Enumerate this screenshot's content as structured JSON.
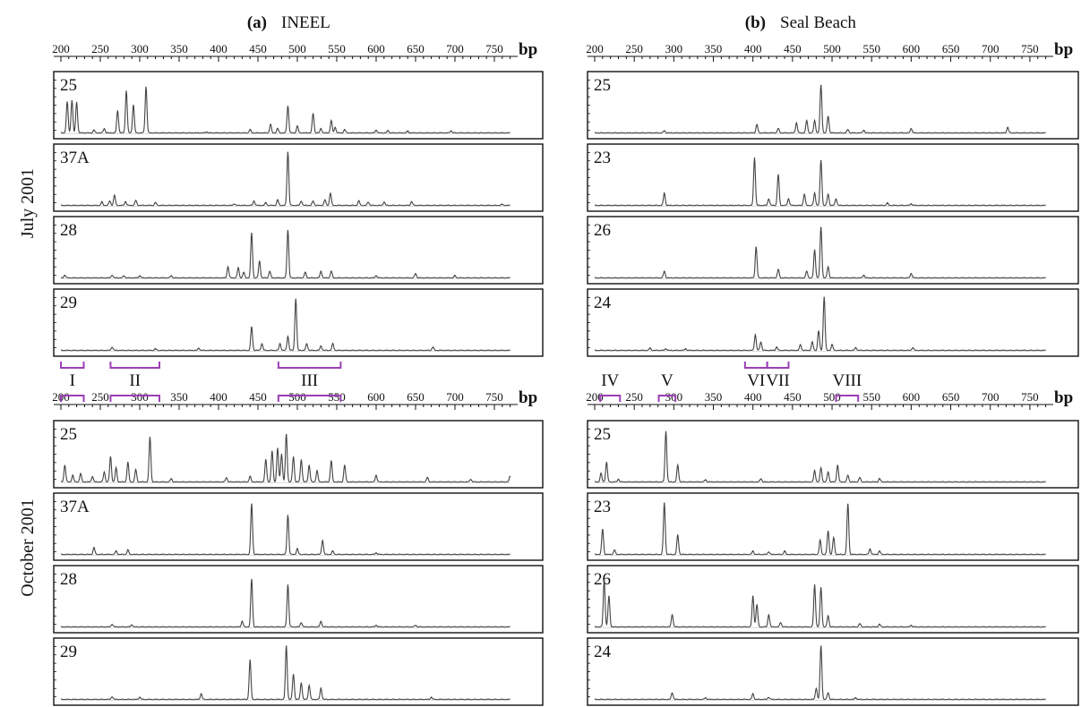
{
  "figure": {
    "panel_a": {
      "letter": "(a)",
      "title": "INEEL"
    },
    "panel_b": {
      "letter": "(b)",
      "title": "Seal Beach"
    },
    "row_labels": [
      "July 2001",
      "October 2001"
    ],
    "unit": "bp",
    "colors": {
      "trace": "#444444",
      "frame": "#111111",
      "bracket": "#9b3fb5"
    }
  },
  "chart_data": [
    {
      "type": "line",
      "title": "INEEL",
      "panel": "(a)",
      "row": "July 2001",
      "xlabel": "bp",
      "xlim": [
        200,
        775
      ],
      "ticks": [
        200,
        250,
        300,
        350,
        400,
        450,
        500,
        550,
        600,
        650,
        700,
        750
      ],
      "grid": false,
      "series": [
        {
          "name": "25",
          "peaks": [
            [
              208,
              0.55
            ],
            [
              214,
              0.58
            ],
            [
              220,
              0.55
            ],
            [
              242,
              0.05
            ],
            [
              255,
              0.08
            ],
            [
              272,
              0.4
            ],
            [
              283,
              0.75
            ],
            [
              292,
              0.5
            ],
            [
              308,
              0.82
            ],
            [
              385,
              0.02
            ],
            [
              440,
              0.06
            ],
            [
              466,
              0.15
            ],
            [
              475,
              0.08
            ],
            [
              488,
              0.48
            ],
            [
              500,
              0.12
            ],
            [
              520,
              0.35
            ],
            [
              530,
              0.08
            ],
            [
              543,
              0.22
            ],
            [
              548,
              0.1
            ],
            [
              560,
              0.06
            ],
            [
              600,
              0.05
            ],
            [
              615,
              0.04
            ],
            [
              640,
              0.03
            ],
            [
              695,
              0.04
            ]
          ]
        },
        {
          "name": "37A",
          "peaks": [
            [
              252,
              0.06
            ],
            [
              262,
              0.08
            ],
            [
              268,
              0.18
            ],
            [
              282,
              0.07
            ],
            [
              295,
              0.09
            ],
            [
              320,
              0.05
            ],
            [
              420,
              0.03
            ],
            [
              445,
              0.08
            ],
            [
              460,
              0.05
            ],
            [
              475,
              0.1
            ],
            [
              488,
              0.95
            ],
            [
              505,
              0.08
            ],
            [
              520,
              0.08
            ],
            [
              535,
              0.1
            ],
            [
              542,
              0.22
            ],
            [
              578,
              0.08
            ],
            [
              590,
              0.06
            ],
            [
              610,
              0.06
            ],
            [
              645,
              0.07
            ],
            [
              760,
              0.02
            ]
          ]
        },
        {
          "name": "28",
          "peaks": [
            [
              205,
              0.05
            ],
            [
              265,
              0.05
            ],
            [
              280,
              0.04
            ],
            [
              300,
              0.04
            ],
            [
              340,
              0.04
            ],
            [
              412,
              0.2
            ],
            [
              425,
              0.18
            ],
            [
              432,
              0.1
            ],
            [
              442,
              0.8
            ],
            [
              452,
              0.3
            ],
            [
              465,
              0.12
            ],
            [
              488,
              0.85
            ],
            [
              510,
              0.1
            ],
            [
              530,
              0.12
            ],
            [
              543,
              0.12
            ],
            [
              600,
              0.04
            ],
            [
              650,
              0.08
            ],
            [
              700,
              0.04
            ]
          ]
        },
        {
          "name": "29",
          "peaks": [
            [
              265,
              0.06
            ],
            [
              320,
              0.03
            ],
            [
              375,
              0.04
            ],
            [
              442,
              0.42
            ],
            [
              455,
              0.12
            ],
            [
              478,
              0.12
            ],
            [
              488,
              0.25
            ],
            [
              498,
              0.92
            ],
            [
              512,
              0.12
            ],
            [
              530,
              0.08
            ],
            [
              545,
              0.12
            ],
            [
              672,
              0.06
            ]
          ]
        }
      ]
    },
    {
      "type": "line",
      "title": "Seal Beach",
      "panel": "(b)",
      "row": "July 2001",
      "xlabel": "bp",
      "xlim": [
        200,
        775
      ],
      "ticks": [
        200,
        250,
        300,
        350,
        400,
        450,
        500,
        550,
        600,
        650,
        700,
        750
      ],
      "grid": false,
      "series": [
        {
          "name": "25",
          "peaks": [
            [
              288,
              0.04
            ],
            [
              405,
              0.15
            ],
            [
              432,
              0.08
            ],
            [
              455,
              0.18
            ],
            [
              468,
              0.22
            ],
            [
              478,
              0.22
            ],
            [
              486,
              0.85
            ],
            [
              495,
              0.3
            ],
            [
              520,
              0.06
            ],
            [
              540,
              0.05
            ],
            [
              600,
              0.08
            ],
            [
              722,
              0.1
            ]
          ]
        },
        {
          "name": "23",
          "peaks": [
            [
              288,
              0.22
            ],
            [
              402,
              0.85
            ],
            [
              420,
              0.12
            ],
            [
              432,
              0.55
            ],
            [
              445,
              0.12
            ],
            [
              465,
              0.2
            ],
            [
              478,
              0.22
            ],
            [
              486,
              0.8
            ],
            [
              495,
              0.2
            ],
            [
              505,
              0.12
            ],
            [
              570,
              0.04
            ],
            [
              600,
              0.03
            ]
          ]
        },
        {
          "name": "26",
          "peaks": [
            [
              288,
              0.12
            ],
            [
              404,
              0.55
            ],
            [
              432,
              0.15
            ],
            [
              468,
              0.12
            ],
            [
              478,
              0.5
            ],
            [
              486,
              0.9
            ],
            [
              495,
              0.2
            ],
            [
              540,
              0.05
            ],
            [
              600,
              0.08
            ]
          ]
        },
        {
          "name": "24",
          "peaks": [
            [
              270,
              0.04
            ],
            [
              290,
              0.03
            ],
            [
              315,
              0.03
            ],
            [
              403,
              0.28
            ],
            [
              410,
              0.15
            ],
            [
              430,
              0.06
            ],
            [
              460,
              0.1
            ],
            [
              475,
              0.15
            ],
            [
              483,
              0.35
            ],
            [
              490,
              0.95
            ],
            [
              500,
              0.1
            ],
            [
              530,
              0.05
            ],
            [
              602,
              0.05
            ]
          ]
        }
      ]
    },
    {
      "type": "line",
      "title": "INEEL",
      "panel": "(a)",
      "row": "October 2001",
      "xlabel": "bp",
      "xlim": [
        200,
        775
      ],
      "ticks": [
        200,
        250,
        300,
        350,
        400,
        450,
        500,
        550,
        600,
        650,
        700,
        750
      ],
      "grid": false,
      "series": [
        {
          "name": "25",
          "peaks": [
            [
              205,
              0.3
            ],
            [
              215,
              0.12
            ],
            [
              225,
              0.15
            ],
            [
              240,
              0.1
            ],
            [
              255,
              0.18
            ],
            [
              263,
              0.45
            ],
            [
              270,
              0.25
            ],
            [
              285,
              0.35
            ],
            [
              295,
              0.22
            ],
            [
              313,
              0.8
            ],
            [
              340,
              0.06
            ],
            [
              410,
              0.08
            ],
            [
              440,
              0.1
            ],
            [
              460,
              0.4
            ],
            [
              468,
              0.55
            ],
            [
              475,
              0.6
            ],
            [
              480,
              0.5
            ],
            [
              486,
              0.85
            ],
            [
              495,
              0.45
            ],
            [
              505,
              0.4
            ],
            [
              515,
              0.3
            ],
            [
              525,
              0.2
            ],
            [
              543,
              0.38
            ],
            [
              560,
              0.3
            ],
            [
              600,
              0.12
            ],
            [
              665,
              0.08
            ],
            [
              720,
              0.05
            ],
            [
              770,
              0.1
            ]
          ]
        },
        {
          "name": "37A",
          "peaks": [
            [
              242,
              0.12
            ],
            [
              270,
              0.06
            ],
            [
              285,
              0.08
            ],
            [
              442,
              0.9
            ],
            [
              488,
              0.7
            ],
            [
              500,
              0.1
            ],
            [
              532,
              0.25
            ],
            [
              545,
              0.06
            ],
            [
              600,
              0.03
            ]
          ]
        },
        {
          "name": "28",
          "peaks": [
            [
              265,
              0.05
            ],
            [
              290,
              0.04
            ],
            [
              430,
              0.1
            ],
            [
              442,
              0.85
            ],
            [
              488,
              0.75
            ],
            [
              505,
              0.08
            ],
            [
              530,
              0.1
            ],
            [
              600,
              0.03
            ],
            [
              650,
              0.03
            ]
          ]
        },
        {
          "name": "29",
          "peaks": [
            [
              265,
              0.05
            ],
            [
              300,
              0.04
            ],
            [
              378,
              0.1
            ],
            [
              440,
              0.7
            ],
            [
              486,
              0.95
            ],
            [
              495,
              0.45
            ],
            [
              505,
              0.3
            ],
            [
              515,
              0.25
            ],
            [
              530,
              0.2
            ],
            [
              670,
              0.04
            ]
          ]
        }
      ]
    },
    {
      "type": "line",
      "title": "Seal Beach",
      "panel": "(b)",
      "row": "October 2001",
      "xlabel": "bp",
      "xlim": [
        200,
        775
      ],
      "ticks": [
        200,
        250,
        300,
        350,
        400,
        450,
        500,
        550,
        600,
        650,
        700,
        750
      ],
      "grid": false,
      "series": [
        {
          "name": "25",
          "peaks": [
            [
              208,
              0.15
            ],
            [
              215,
              0.35
            ],
            [
              230,
              0.05
            ],
            [
              290,
              0.9
            ],
            [
              305,
              0.3
            ],
            [
              340,
              0.04
            ],
            [
              410,
              0.06
            ],
            [
              478,
              0.2
            ],
            [
              486,
              0.25
            ],
            [
              495,
              0.18
            ],
            [
              507,
              0.3
            ],
            [
              520,
              0.12
            ],
            [
              535,
              0.08
            ],
            [
              560,
              0.06
            ]
          ]
        },
        {
          "name": "23",
          "peaks": [
            [
              210,
              0.45
            ],
            [
              225,
              0.08
            ],
            [
              288,
              0.92
            ],
            [
              305,
              0.35
            ],
            [
              400,
              0.06
            ],
            [
              420,
              0.05
            ],
            [
              440,
              0.06
            ],
            [
              485,
              0.25
            ],
            [
              495,
              0.42
            ],
            [
              502,
              0.3
            ],
            [
              520,
              0.9
            ],
            [
              548,
              0.1
            ],
            [
              560,
              0.06
            ]
          ]
        },
        {
          "name": "26",
          "peaks": [
            [
              212,
              0.85
            ],
            [
              218,
              0.55
            ],
            [
              298,
              0.22
            ],
            [
              400,
              0.55
            ],
            [
              405,
              0.4
            ],
            [
              420,
              0.22
            ],
            [
              435,
              0.08
            ],
            [
              478,
              0.75
            ],
            [
              486,
              0.7
            ],
            [
              495,
              0.2
            ],
            [
              535,
              0.06
            ],
            [
              560,
              0.05
            ],
            [
              600,
              0.03
            ]
          ]
        },
        {
          "name": "24",
          "peaks": [
            [
              298,
              0.12
            ],
            [
              340,
              0.03
            ],
            [
              400,
              0.1
            ],
            [
              420,
              0.04
            ],
            [
              480,
              0.2
            ],
            [
              486,
              0.95
            ],
            [
              495,
              0.12
            ],
            [
              530,
              0.03
            ]
          ]
        }
      ]
    }
  ],
  "regions": {
    "ineel": [
      {
        "label": "I",
        "start": 200,
        "end": 229
      },
      {
        "label": "II",
        "start": 263,
        "end": 325
      },
      {
        "label": "III",
        "start": 476,
        "end": 555
      }
    ],
    "seal_beach": [
      {
        "label": "IV",
        "start": 207,
        "end": 232
      },
      {
        "label": "V",
        "start": 281,
        "end": 302
      },
      {
        "label": "VI",
        "start": 390,
        "end": 418
      },
      {
        "label": "VII",
        "start": 418,
        "end": 445
      },
      {
        "label": "VIII",
        "start": 505,
        "end": 533
      }
    ]
  }
}
